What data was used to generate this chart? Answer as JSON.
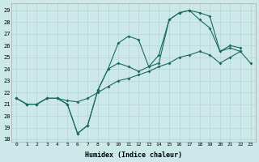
{
  "xlabel": "Humidex (Indice chaleur)",
  "bg_color": "#cce8e8",
  "line_color": "#1a6b5a",
  "grid_color": "#b8d8d8",
  "xlim": [
    -0.5,
    23.5
  ],
  "ylim": [
    17.8,
    29.6
  ],
  "yticks": [
    18,
    19,
    20,
    21,
    22,
    23,
    24,
    25,
    26,
    27,
    28,
    29
  ],
  "xticks": [
    0,
    1,
    2,
    3,
    4,
    5,
    6,
    7,
    8,
    9,
    10,
    11,
    12,
    13,
    14,
    15,
    16,
    17,
    18,
    19,
    20,
    21,
    22,
    23
  ],
  "line1_y": [
    21.5,
    21.0,
    21.0,
    21.5,
    21.5,
    21.0,
    18.5,
    19.2,
    22.2,
    24.0,
    26.2,
    26.8,
    26.5,
    24.2,
    24.5,
    28.2,
    28.8,
    29.0,
    28.2,
    27.5,
    25.5,
    26.0,
    25.8,
    null
  ],
  "line2_y": [
    21.5,
    21.0,
    21.0,
    21.5,
    21.5,
    21.0,
    18.5,
    19.2,
    22.2,
    24.0,
    24.5,
    24.2,
    23.8,
    24.2,
    25.2,
    28.2,
    28.8,
    29.0,
    28.8,
    28.5,
    25.5,
    25.8,
    25.5,
    null
  ],
  "line3_y": [
    21.5,
    21.0,
    21.0,
    21.5,
    21.5,
    21.3,
    21.2,
    21.5,
    22.0,
    22.5,
    23.0,
    23.2,
    23.5,
    23.8,
    24.2,
    24.5,
    25.0,
    25.2,
    25.5,
    25.2,
    24.5,
    25.0,
    25.5,
    24.5
  ]
}
